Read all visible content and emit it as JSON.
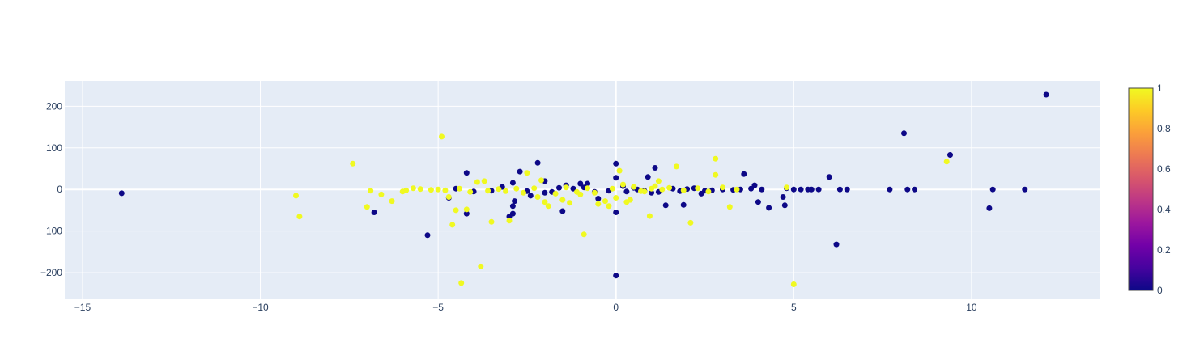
{
  "chart_data": {
    "type": "scatter",
    "title": "",
    "xlabel": "",
    "ylabel": "",
    "xlim": [
      -15.5,
      13.6
    ],
    "ylim": [
      -264,
      261
    ],
    "x_ticks": [
      -15,
      -10,
      -5,
      0,
      5,
      10
    ],
    "y_ticks": [
      -200,
      -100,
      0,
      100,
      200
    ],
    "x_tick_labels": [
      "−15",
      "−10",
      "−5",
      "0",
      "5",
      "10"
    ],
    "y_tick_labels": [
      "−200",
      "−100",
      "0",
      "100",
      "200"
    ],
    "grid": true,
    "colorbar": {
      "min": 0,
      "max": 1,
      "ticks": [
        0,
        0.2,
        0.4,
        0.6,
        0.8,
        1
      ],
      "tick_labels": [
        "0",
        "0.2",
        "0.4",
        "0.6",
        "0.8",
        "1"
      ],
      "colorscale": [
        "#0d0887",
        "#46039f",
        "#7201a8",
        "#9c179e",
        "#bd3786",
        "#d8576b",
        "#ed7953",
        "#fb9f3a",
        "#fdca26",
        "#f0f921"
      ]
    },
    "colors": {
      "plot_bg": "#e5ecf6",
      "grid": "#ffffff",
      "class_0": "#0d0887",
      "class_1": "#f0f921"
    },
    "series": [
      {
        "color_value": 0,
        "points": [
          [
            -13.9,
            -9
          ],
          [
            -6.8,
            -55
          ],
          [
            -5.3,
            -110
          ],
          [
            -4.7,
            -20
          ],
          [
            -4.2,
            -58
          ],
          [
            -4.2,
            40
          ],
          [
            -3.0,
            -65
          ],
          [
            -2.9,
            -40
          ],
          [
            -2.9,
            -58
          ],
          [
            -2.85,
            -28
          ],
          [
            -2.9,
            16
          ],
          [
            -2.7,
            43
          ],
          [
            -2.2,
            64
          ],
          [
            -2.0,
            20
          ],
          [
            -1.5,
            -52
          ],
          [
            -1.4,
            10
          ],
          [
            -1.0,
            14
          ],
          [
            -0.8,
            14
          ],
          [
            -0.5,
            -22
          ],
          [
            0.0,
            62
          ],
          [
            0.0,
            -55
          ],
          [
            0.0,
            28
          ],
          [
            0.0,
            -207
          ],
          [
            0.9,
            30
          ],
          [
            1.1,
            52
          ],
          [
            1.4,
            -38
          ],
          [
            1.9,
            -37
          ],
          [
            2.4,
            -10
          ],
          [
            3.6,
            37
          ],
          [
            3.9,
            10
          ],
          [
            4.0,
            -30
          ],
          [
            4.3,
            -44
          ],
          [
            4.7,
            -18
          ],
          [
            4.75,
            -38
          ],
          [
            4.8,
            3
          ],
          [
            5.2,
            0
          ],
          [
            5.5,
            0
          ],
          [
            5.7,
            0
          ],
          [
            6.0,
            30
          ],
          [
            6.2,
            -132
          ],
          [
            6.3,
            0
          ],
          [
            6.5,
            0
          ],
          [
            7.7,
            0
          ],
          [
            8.1,
            135
          ],
          [
            8.2,
            0
          ],
          [
            8.4,
            0
          ],
          [
            9.4,
            83
          ],
          [
            10.5,
            -45
          ],
          [
            10.6,
            0
          ],
          [
            11.5,
            0
          ],
          [
            12.1,
            228
          ],
          [
            -4.0,
            -5
          ],
          [
            -3.5,
            -3
          ],
          [
            -2.5,
            -4
          ],
          [
            -2.0,
            -8
          ],
          [
            -1.8,
            -6
          ],
          [
            -1.2,
            2
          ],
          [
            -0.6,
            -6
          ],
          [
            0.3,
            -5
          ],
          [
            0.5,
            4
          ],
          [
            0.8,
            -3
          ],
          [
            1.2,
            -6
          ],
          [
            1.6,
            2
          ],
          [
            2.0,
            1
          ],
          [
            2.5,
            -3
          ],
          [
            3.0,
            0
          ],
          [
            3.3,
            -1
          ],
          [
            3.5,
            0
          ],
          [
            4.1,
            0
          ],
          [
            5.0,
            0
          ],
          [
            5.4,
            0
          ],
          [
            -4.5,
            2
          ],
          [
            -3.2,
            6
          ],
          [
            -2.4,
            -15
          ],
          [
            -1.6,
            4
          ],
          [
            -0.2,
            -3
          ],
          [
            0.6,
            0
          ],
          [
            1.8,
            -4
          ],
          [
            2.2,
            3
          ],
          [
            2.7,
            -2
          ],
          [
            3.8,
            2
          ],
          [
            -0.9,
            5
          ],
          [
            0.2,
            8
          ],
          [
            1.0,
            -8
          ]
        ]
      },
      {
        "color_value": 1,
        "points": [
          [
            -9.0,
            -15
          ],
          [
            -8.9,
            -65
          ],
          [
            -7.4,
            62
          ],
          [
            -7.0,
            -42
          ],
          [
            -6.9,
            -3
          ],
          [
            -6.6,
            -12
          ],
          [
            -6.3,
            -28
          ],
          [
            -5.9,
            -2
          ],
          [
            -4.9,
            127
          ],
          [
            -4.7,
            -18
          ],
          [
            -4.6,
            -85
          ],
          [
            -4.5,
            -50
          ],
          [
            -4.35,
            -225
          ],
          [
            -4.2,
            -48
          ],
          [
            -3.9,
            18
          ],
          [
            -3.8,
            -185
          ],
          [
            -3.7,
            20
          ],
          [
            -3.5,
            -78
          ],
          [
            -3.0,
            -75
          ],
          [
            -2.5,
            40
          ],
          [
            -2.1,
            22
          ],
          [
            -2.0,
            -30
          ],
          [
            -1.9,
            -40
          ],
          [
            -1.5,
            -25
          ],
          [
            -1.3,
            -32
          ],
          [
            -0.9,
            -108
          ],
          [
            -0.5,
            -35
          ],
          [
            -0.3,
            -28
          ],
          [
            -0.2,
            -40
          ],
          [
            0.1,
            45
          ],
          [
            0.4,
            -25
          ],
          [
            0.95,
            -64
          ],
          [
            1.2,
            20
          ],
          [
            1.7,
            55
          ],
          [
            2.1,
            -80
          ],
          [
            2.8,
            74
          ],
          [
            2.8,
            35
          ],
          [
            3.2,
            -42
          ],
          [
            4.8,
            5
          ],
          [
            5.0,
            -228
          ],
          [
            9.3,
            67
          ],
          [
            -5.5,
            1
          ],
          [
            -5.2,
            -1
          ],
          [
            -5.0,
            0
          ],
          [
            -4.8,
            -2
          ],
          [
            -4.4,
            2
          ],
          [
            -4.1,
            -6
          ],
          [
            -3.6,
            -3
          ],
          [
            -3.3,
            1
          ],
          [
            -3.1,
            -4
          ],
          [
            -2.8,
            2
          ],
          [
            -2.6,
            -8
          ],
          [
            -2.3,
            3
          ],
          [
            -1.7,
            -10
          ],
          [
            -1.4,
            5
          ],
          [
            -1.1,
            -6
          ],
          [
            -0.8,
            3
          ],
          [
            -0.6,
            -8
          ],
          [
            -0.1,
            2
          ],
          [
            0.2,
            12
          ],
          [
            0.5,
            6
          ],
          [
            0.7,
            -4
          ],
          [
            1.0,
            2
          ],
          [
            1.3,
            0
          ],
          [
            1.5,
            4
          ],
          [
            1.9,
            -2
          ],
          [
            2.3,
            3
          ],
          [
            2.6,
            -5
          ],
          [
            3.0,
            5
          ],
          [
            3.4,
            0
          ],
          [
            -6.0,
            -5
          ],
          [
            -5.7,
            3
          ],
          [
            -2.2,
            -18
          ],
          [
            -1.0,
            -12
          ],
          [
            0.0,
            -20
          ],
          [
            0.3,
            -30
          ],
          [
            0.8,
            -5
          ],
          [
            1.1,
            8
          ]
        ]
      }
    ]
  }
}
